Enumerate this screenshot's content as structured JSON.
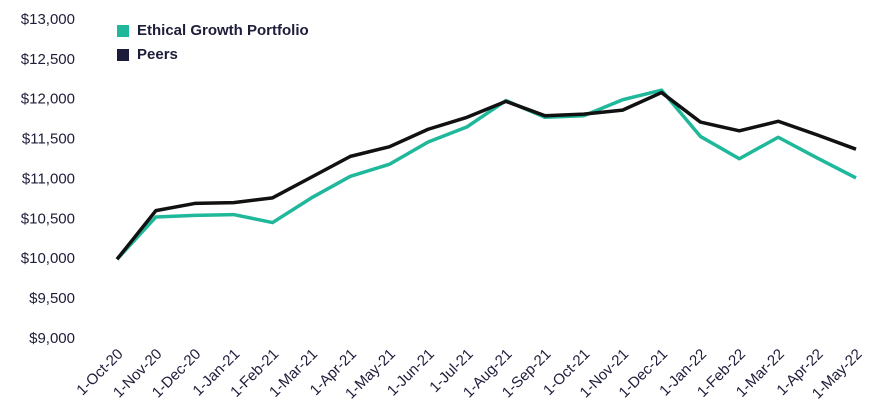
{
  "chart_data": {
    "type": "line",
    "categories": [
      "1-Oct-20",
      "1-Nov-20",
      "1-Dec-20",
      "1-Jan-21",
      "1-Feb-21",
      "1-Mar-21",
      "1-Apr-21",
      "1-May-21",
      "1-Jun-21",
      "1-Jul-21",
      "1-Aug-21",
      "1-Sep-21",
      "1-Oct-21",
      "1-Nov-21",
      "1-Dec-21",
      "1-Jan-22",
      "1-Feb-22",
      "1-Mar-22",
      "1-Apr-22",
      "1-May-22"
    ],
    "series": [
      {
        "name": "Ethical Growth Portfolio",
        "color": "#1fb89b",
        "values": [
          10000,
          10530,
          10550,
          10560,
          10460,
          10770,
          11040,
          11190,
          11470,
          11660,
          11990,
          11780,
          11800,
          12000,
          12120,
          11540,
          11260,
          11530,
          11270,
          11020
        ]
      },
      {
        "name": "Peers",
        "color": "#111111",
        "values": [
          10000,
          10610,
          10700,
          10710,
          10770,
          11030,
          11290,
          11410,
          11630,
          11780,
          11980,
          11800,
          11820,
          11870,
          12090,
          11720,
          11610,
          11730,
          11560,
          11380
        ]
      }
    ],
    "ylim": [
      9000,
      13000
    ],
    "yticks": [
      {
        "value": 9000,
        "label": "$9,000"
      },
      {
        "value": 9500,
        "label": "$9,500"
      },
      {
        "value": 10000,
        "label": "$10,000"
      },
      {
        "value": 10500,
        "label": "$10,500"
      },
      {
        "value": 11000,
        "label": "$11,000"
      },
      {
        "value": 11500,
        "label": "$11,500"
      },
      {
        "value": 12000,
        "label": "$12,000"
      },
      {
        "value": 12500,
        "label": "$12,500"
      },
      {
        "value": 13000,
        "label": "$13,000"
      }
    ],
    "grid": false,
    "legend": "upper-left"
  }
}
